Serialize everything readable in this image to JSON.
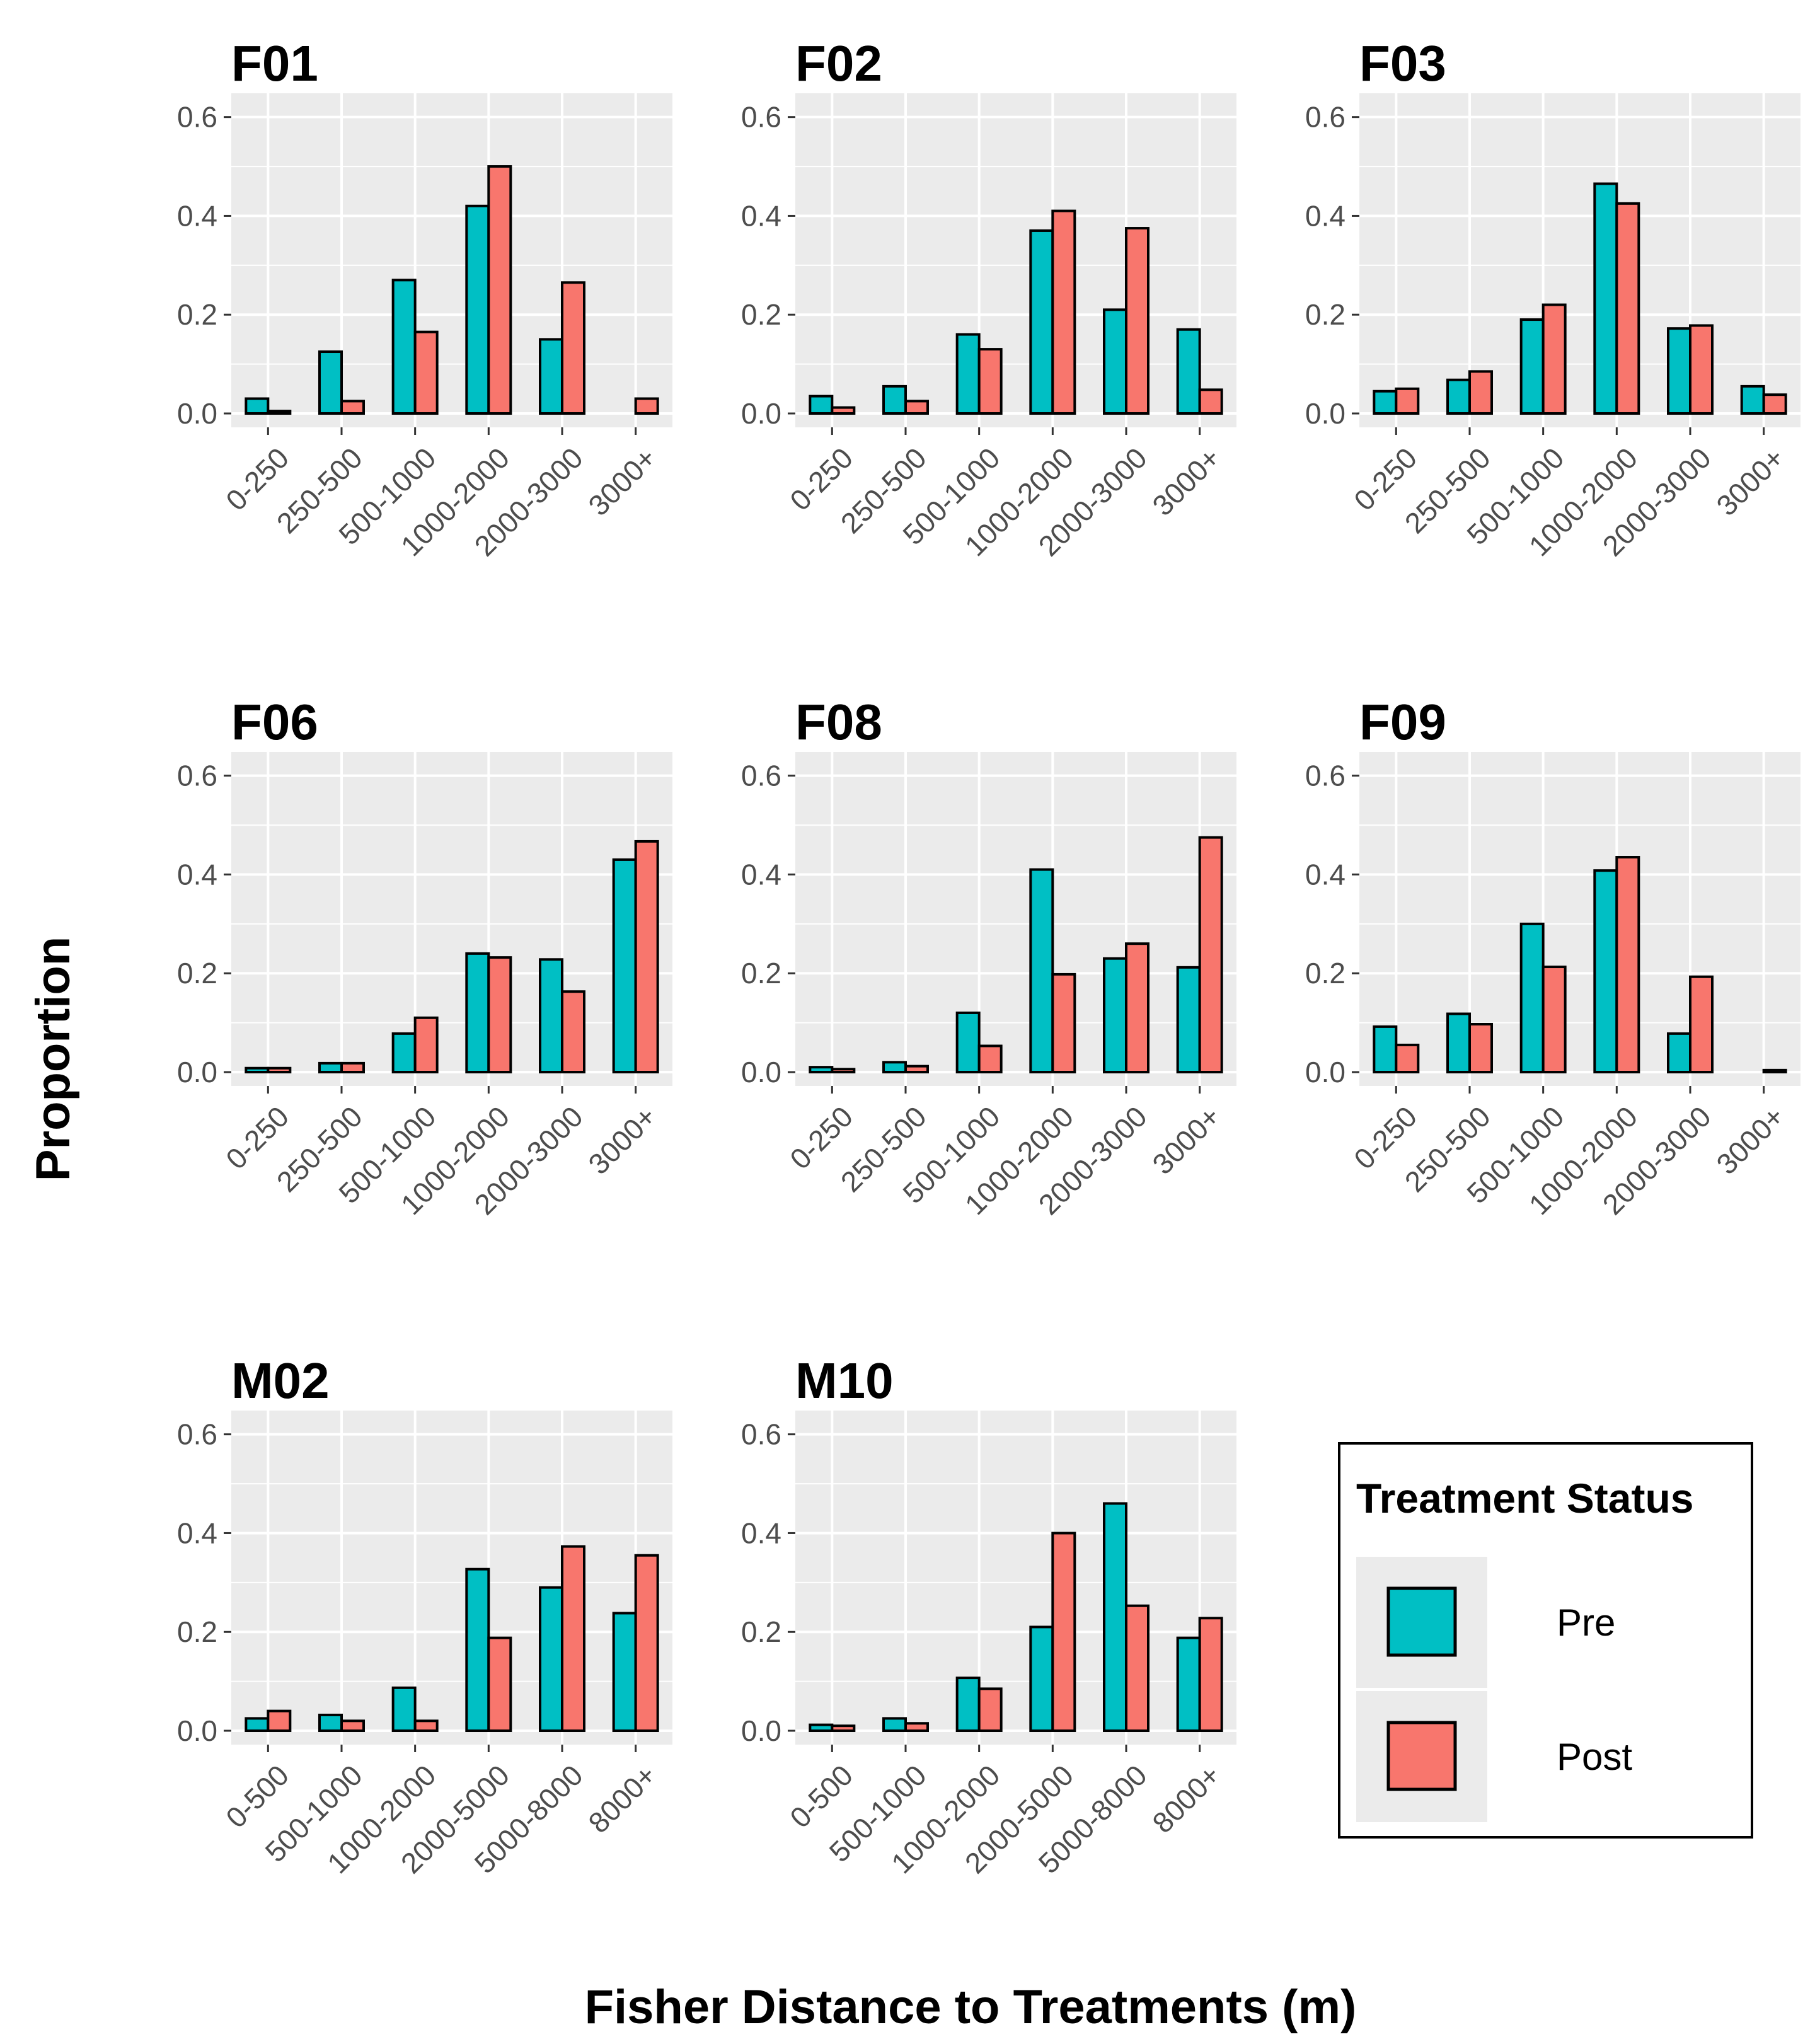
{
  "colors": {
    "pre": "#00BFC4",
    "post": "#F8766D",
    "panel_bg": "#EBEBEB",
    "grid": "#FFFFFF",
    "bar_outline": "#000000",
    "tick_text": "#4D4D4D"
  },
  "figure": {
    "xlabel": "Fisher Distance to Treatments (m)",
    "ylabel": "Proportion"
  },
  "legend": {
    "title": "Treatment Status",
    "entries": [
      {
        "label": "Pre",
        "color": "#00BFC4"
      },
      {
        "label": "Post",
        "color": "#F8766D"
      }
    ]
  },
  "chart_data": [
    {
      "type": "bar",
      "title": "F01",
      "categories": [
        "0-250",
        "250-500",
        "500-1000",
        "1000-2000",
        "2000-3000",
        "3000+"
      ],
      "series": [
        {
          "name": "Pre",
          "values": [
            0.03,
            0.125,
            0.27,
            0.42,
            0.15,
            0.0
          ]
        },
        {
          "name": "Post",
          "values": [
            0.005,
            0.025,
            0.165,
            0.5,
            0.265,
            0.03
          ]
        }
      ],
      "ylim": [
        0,
        0.62
      ],
      "yticks": [
        "0.0",
        "0.2",
        "0.4",
        "0.6"
      ]
    },
    {
      "type": "bar",
      "title": "F02",
      "categories": [
        "0-250",
        "250-500",
        "500-1000",
        "1000-2000",
        "2000-3000",
        "3000+"
      ],
      "series": [
        {
          "name": "Pre",
          "values": [
            0.035,
            0.055,
            0.16,
            0.37,
            0.21,
            0.17
          ]
        },
        {
          "name": "Post",
          "values": [
            0.012,
            0.025,
            0.13,
            0.41,
            0.375,
            0.048
          ]
        }
      ],
      "ylim": [
        0,
        0.62
      ],
      "yticks": [
        "0.0",
        "0.2",
        "0.4",
        "0.6"
      ]
    },
    {
      "type": "bar",
      "title": "F03",
      "categories": [
        "0-250",
        "250-500",
        "500-1000",
        "1000-2000",
        "2000-3000",
        "3000+"
      ],
      "series": [
        {
          "name": "Pre",
          "values": [
            0.045,
            0.068,
            0.19,
            0.465,
            0.172,
            0.055
          ]
        },
        {
          "name": "Post",
          "values": [
            0.05,
            0.085,
            0.22,
            0.425,
            0.178,
            0.038
          ]
        }
      ],
      "ylim": [
        0,
        0.62
      ],
      "yticks": [
        "0.0",
        "0.2",
        "0.4",
        "0.6"
      ]
    },
    {
      "type": "bar",
      "title": "F06",
      "categories": [
        "0-250",
        "250-500",
        "500-1000",
        "1000-2000",
        "2000-3000",
        "3000+"
      ],
      "series": [
        {
          "name": "Pre",
          "values": [
            0.008,
            0.018,
            0.078,
            0.24,
            0.228,
            0.43
          ]
        },
        {
          "name": "Post",
          "values": [
            0.008,
            0.018,
            0.11,
            0.232,
            0.163,
            0.467
          ]
        }
      ],
      "ylim": [
        0,
        0.62
      ],
      "yticks": [
        "0.0",
        "0.2",
        "0.4",
        "0.6"
      ]
    },
    {
      "type": "bar",
      "title": "F08",
      "categories": [
        "0-250",
        "250-500",
        "500-1000",
        "1000-2000",
        "2000-3000",
        "3000+"
      ],
      "series": [
        {
          "name": "Pre",
          "values": [
            0.01,
            0.02,
            0.12,
            0.41,
            0.23,
            0.212
          ]
        },
        {
          "name": "Post",
          "values": [
            0.006,
            0.012,
            0.053,
            0.198,
            0.26,
            0.475
          ]
        }
      ],
      "ylim": [
        0,
        0.62
      ],
      "yticks": [
        "0.0",
        "0.2",
        "0.4",
        "0.6"
      ]
    },
    {
      "type": "bar",
      "title": "F09",
      "categories": [
        "0-250",
        "250-500",
        "500-1000",
        "1000-2000",
        "2000-3000",
        "3000+"
      ],
      "series": [
        {
          "name": "Pre",
          "values": [
            0.092,
            0.118,
            0.3,
            0.408,
            0.078,
            0.0
          ]
        },
        {
          "name": "Post",
          "values": [
            0.055,
            0.097,
            0.213,
            0.435,
            0.193,
            0.004
          ]
        }
      ],
      "ylim": [
        0,
        0.62
      ],
      "yticks": [
        "0.0",
        "0.2",
        "0.4",
        "0.6"
      ]
    },
    {
      "type": "bar",
      "title": "M02",
      "categories": [
        "0-500",
        "500-1000",
        "1000-2000",
        "2000-5000",
        "5000-8000",
        "8000+"
      ],
      "series": [
        {
          "name": "Pre",
          "values": [
            0.025,
            0.032,
            0.087,
            0.327,
            0.29,
            0.238
          ]
        },
        {
          "name": "Post",
          "values": [
            0.04,
            0.02,
            0.02,
            0.188,
            0.373,
            0.355
          ]
        }
      ],
      "ylim": [
        0,
        0.62
      ],
      "yticks": [
        "0.0",
        "0.2",
        "0.4",
        "0.6"
      ]
    },
    {
      "type": "bar",
      "title": "M10",
      "categories": [
        "0-500",
        "500-1000",
        "1000-2000",
        "2000-5000",
        "5000-8000",
        "8000+"
      ],
      "series": [
        {
          "name": "Pre",
          "values": [
            0.012,
            0.025,
            0.107,
            0.21,
            0.46,
            0.188
          ]
        },
        {
          "name": "Post",
          "values": [
            0.01,
            0.015,
            0.085,
            0.4,
            0.253,
            0.228
          ]
        }
      ],
      "ylim": [
        0,
        0.62
      ],
      "yticks": [
        "0.0",
        "0.2",
        "0.4",
        "0.6"
      ]
    }
  ]
}
